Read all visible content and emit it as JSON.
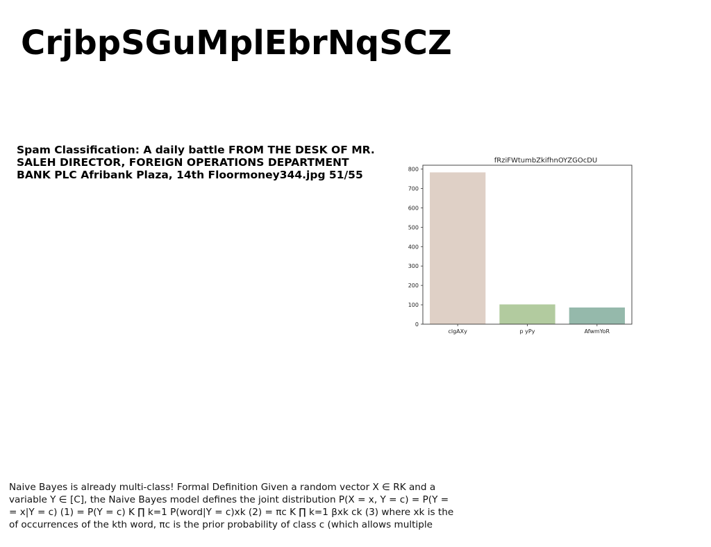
{
  "slide": {
    "title": "CrjbpSGuMplEbrNqSCZ"
  },
  "bold_text": {
    "lines": [
      "Spam Classification: A daily battle FROM THE DESK OF MR.",
      "SALEH DIRECTOR, FOREIGN OPERATIONS DEPARTMENT",
      "BANK PLC Afribank Plaza, 14th Floormoney344.jpg 51/55"
    ]
  },
  "body_text": {
    "lines": [
      "Naive Bayes is already multi-class! Formal Definition Given a random vector X ∈ RK and a",
      "variable Y ∈ [C], the Naive Bayes model defines the joint distribution P(X = x, Y = c) = P(Y =",
      "= x|Y = c) (1) = P(Y = c) K ∏ k=1 P(word|Y = c)xk (2) = πc K ∏ k=1 βxk ck (3) where xk is the",
      "of occurrences of the kth word, πc is the prior probability of class c (which allows multiple"
    ]
  },
  "chart_data": {
    "type": "bar",
    "title": "fRziFWtumbZkifhnOYZGOcDU",
    "categories": [
      "clgAXy",
      "p yPy",
      "AfwmYoR"
    ],
    "values": [
      783,
      102,
      86
    ],
    "colors": [
      "#dfd0c6",
      "#b2cb9f",
      "#95b9ab"
    ],
    "xlabel": "",
    "ylabel": "",
    "ylim": [
      0,
      820
    ],
    "yticks": [
      0,
      100,
      200,
      300,
      400,
      500,
      600,
      700,
      800
    ],
    "grid": false
  }
}
